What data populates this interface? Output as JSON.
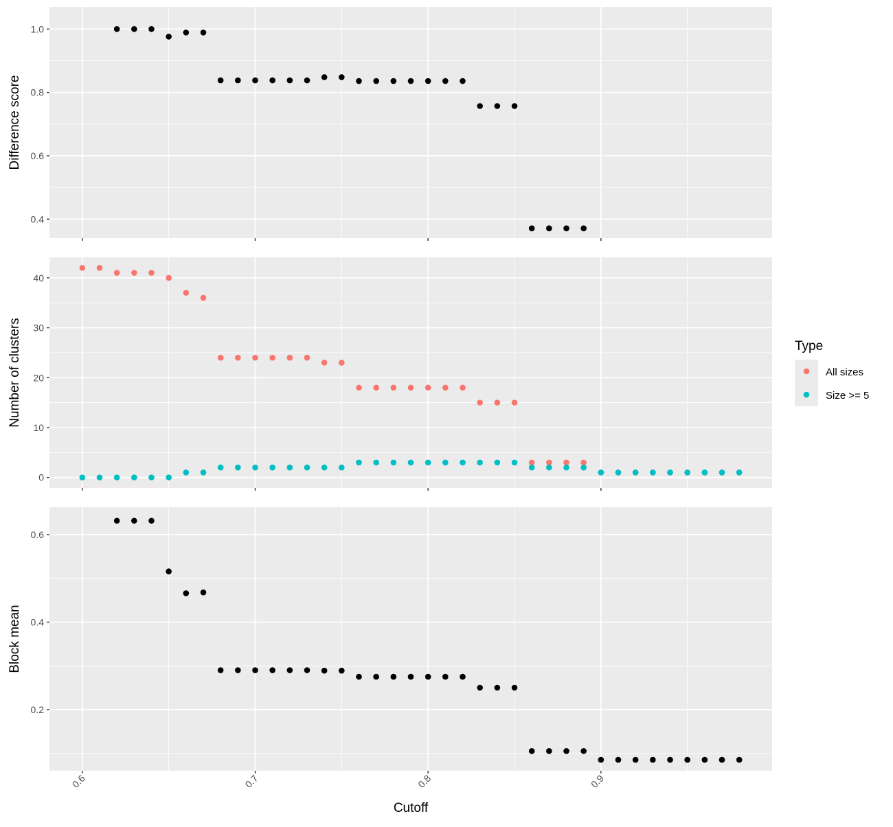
{
  "chart_data": {
    "type": "scatter",
    "xlabel": "Cutoff",
    "xlim": [
      0.581,
      0.999
    ],
    "x_ticks": [
      0.6,
      0.7,
      0.8,
      0.9
    ],
    "x_tick_labels": [
      "0.6",
      "0.7",
      "0.8",
      "0.9"
    ],
    "grid": true,
    "panels": [
      {
        "ylabel": "Difference score",
        "ylim": [
          0.34,
          1.07
        ],
        "y_ticks": [
          0.4,
          0.6,
          0.8,
          1.0
        ],
        "y_tick_labels": [
          "0.4",
          "0.6",
          "0.8",
          "1.0"
        ],
        "series": [
          {
            "color": "#000000",
            "points": [
              [
                0.62,
                1.0
              ],
              [
                0.63,
                1.0
              ],
              [
                0.64,
                1.0
              ],
              [
                0.65,
                0.976
              ],
              [
                0.66,
                0.989
              ],
              [
                0.67,
                0.989
              ],
              [
                0.68,
                0.838
              ],
              [
                0.69,
                0.838
              ],
              [
                0.7,
                0.838
              ],
              [
                0.71,
                0.838
              ],
              [
                0.72,
                0.838
              ],
              [
                0.73,
                0.838
              ],
              [
                0.74,
                0.848
              ],
              [
                0.75,
                0.848
              ],
              [
                0.76,
                0.836
              ],
              [
                0.77,
                0.836
              ],
              [
                0.78,
                0.836
              ],
              [
                0.79,
                0.836
              ],
              [
                0.8,
                0.836
              ],
              [
                0.81,
                0.836
              ],
              [
                0.82,
                0.836
              ],
              [
                0.83,
                0.757
              ],
              [
                0.84,
                0.757
              ],
              [
                0.85,
                0.757
              ],
              [
                0.86,
                0.371
              ],
              [
                0.87,
                0.371
              ],
              [
                0.88,
                0.371
              ],
              [
                0.89,
                0.371
              ]
            ]
          }
        ]
      },
      {
        "ylabel": "Number of clusters",
        "ylim": [
          -2.1,
          44.1
        ],
        "y_ticks": [
          0,
          10,
          20,
          30,
          40
        ],
        "y_tick_labels": [
          "0",
          "10",
          "20",
          "30",
          "40"
        ],
        "series": [
          {
            "name": "All sizes",
            "color": "#F8766D",
            "points": [
              [
                0.6,
                42
              ],
              [
                0.61,
                42
              ],
              [
                0.62,
                41
              ],
              [
                0.63,
                41
              ],
              [
                0.64,
                41
              ],
              [
                0.65,
                40
              ],
              [
                0.66,
                37
              ],
              [
                0.67,
                36
              ],
              [
                0.68,
                24
              ],
              [
                0.69,
                24
              ],
              [
                0.7,
                24
              ],
              [
                0.71,
                24
              ],
              [
                0.72,
                24
              ],
              [
                0.73,
                24
              ],
              [
                0.74,
                23
              ],
              [
                0.75,
                23
              ],
              [
                0.76,
                18
              ],
              [
                0.77,
                18
              ],
              [
                0.78,
                18
              ],
              [
                0.79,
                18
              ],
              [
                0.8,
                18
              ],
              [
                0.81,
                18
              ],
              [
                0.82,
                18
              ],
              [
                0.83,
                15
              ],
              [
                0.84,
                15
              ],
              [
                0.85,
                15
              ],
              [
                0.86,
                3
              ],
              [
                0.87,
                3
              ],
              [
                0.88,
                3
              ],
              [
                0.89,
                3
              ],
              [
                0.9,
                1
              ],
              [
                0.91,
                1
              ],
              [
                0.92,
                1
              ],
              [
                0.93,
                1
              ],
              [
                0.94,
                1
              ],
              [
                0.95,
                1
              ],
              [
                0.96,
                1
              ],
              [
                0.97,
                1
              ],
              [
                0.98,
                1
              ]
            ]
          },
          {
            "name": "Size >= 5",
            "color": "#00BFC4",
            "points": [
              [
                0.6,
                0
              ],
              [
                0.61,
                0
              ],
              [
                0.62,
                0
              ],
              [
                0.63,
                0
              ],
              [
                0.64,
                0
              ],
              [
                0.65,
                0
              ],
              [
                0.66,
                1
              ],
              [
                0.67,
                1
              ],
              [
                0.68,
                2
              ],
              [
                0.69,
                2
              ],
              [
                0.7,
                2
              ],
              [
                0.71,
                2
              ],
              [
                0.72,
                2
              ],
              [
                0.73,
                2
              ],
              [
                0.74,
                2
              ],
              [
                0.75,
                2
              ],
              [
                0.76,
                3
              ],
              [
                0.77,
                3
              ],
              [
                0.78,
                3
              ],
              [
                0.79,
                3
              ],
              [
                0.8,
                3
              ],
              [
                0.81,
                3
              ],
              [
                0.82,
                3
              ],
              [
                0.83,
                3
              ],
              [
                0.84,
                3
              ],
              [
                0.85,
                3
              ],
              [
                0.86,
                2
              ],
              [
                0.87,
                2
              ],
              [
                0.88,
                2
              ],
              [
                0.89,
                2
              ],
              [
                0.9,
                1
              ],
              [
                0.91,
                1
              ],
              [
                0.92,
                1
              ],
              [
                0.93,
                1
              ],
              [
                0.94,
                1
              ],
              [
                0.95,
                1
              ],
              [
                0.96,
                1
              ],
              [
                0.97,
                1
              ],
              [
                0.98,
                1
              ]
            ]
          }
        ]
      },
      {
        "ylabel": "Block mean",
        "ylim": [
          0.06,
          0.663
        ],
        "y_ticks": [
          0.2,
          0.4,
          0.6
        ],
        "y_tick_labels": [
          "0.2",
          "0.4",
          "0.6"
        ],
        "series": [
          {
            "color": "#000000",
            "points": [
              [
                0.62,
                0.632
              ],
              [
                0.63,
                0.632
              ],
              [
                0.64,
                0.632
              ],
              [
                0.65,
                0.516
              ],
              [
                0.66,
                0.466
              ],
              [
                0.67,
                0.468
              ],
              [
                0.68,
                0.29
              ],
              [
                0.69,
                0.29
              ],
              [
                0.7,
                0.29
              ],
              [
                0.71,
                0.29
              ],
              [
                0.72,
                0.29
              ],
              [
                0.73,
                0.29
              ],
              [
                0.74,
                0.289
              ],
              [
                0.75,
                0.289
              ],
              [
                0.76,
                0.275
              ],
              [
                0.77,
                0.275
              ],
              [
                0.78,
                0.275
              ],
              [
                0.79,
                0.275
              ],
              [
                0.8,
                0.275
              ],
              [
                0.81,
                0.275
              ],
              [
                0.82,
                0.275
              ],
              [
                0.83,
                0.25
              ],
              [
                0.84,
                0.25
              ],
              [
                0.85,
                0.25
              ],
              [
                0.86,
                0.105
              ],
              [
                0.87,
                0.105
              ],
              [
                0.88,
                0.105
              ],
              [
                0.89,
                0.105
              ],
              [
                0.9,
                0.085
              ],
              [
                0.91,
                0.085
              ],
              [
                0.92,
                0.085
              ],
              [
                0.93,
                0.085
              ],
              [
                0.94,
                0.085
              ],
              [
                0.95,
                0.085
              ],
              [
                0.96,
                0.085
              ],
              [
                0.97,
                0.085
              ],
              [
                0.98,
                0.085
              ]
            ]
          }
        ]
      }
    ],
    "legend": {
      "title": "Type",
      "position": "right",
      "entries": [
        {
          "label": "All sizes",
          "color": "#F8766D"
        },
        {
          "label": "Size >= 5",
          "color": "#00BFC4"
        }
      ]
    }
  }
}
